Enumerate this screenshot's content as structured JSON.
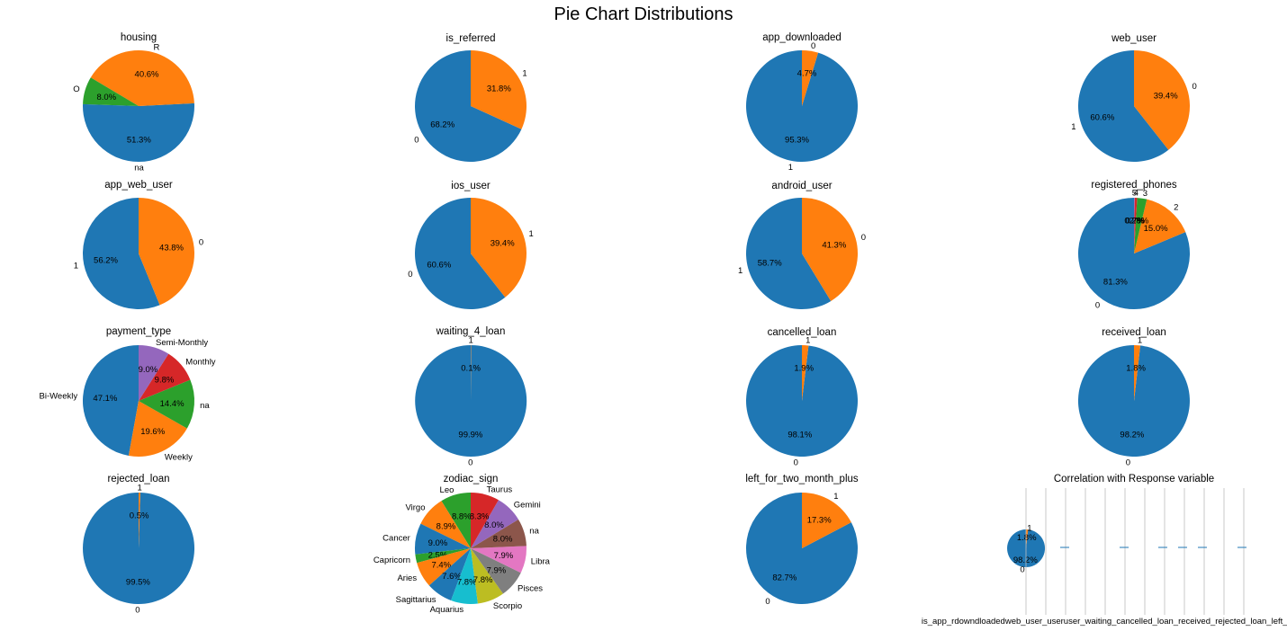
{
  "figure": {
    "suptitle": "Pie Chart Distributions"
  },
  "chart_data": [
    {
      "type": "pie",
      "title": "housing",
      "labels": [
        "na",
        "R",
        "O"
      ],
      "values": [
        51.3,
        40.6,
        8.0
      ],
      "pct_labels": [
        "51.3%",
        "40.6%",
        "8.0%"
      ],
      "colors": [
        "#1f77b4",
        "#ff7f0e",
        "#2ca02c"
      ]
    },
    {
      "type": "pie",
      "title": "is_referred",
      "labels": [
        "0",
        "1"
      ],
      "values": [
        68.2,
        31.8
      ],
      "pct_labels": [
        "68.2%",
        "31.8%"
      ],
      "colors": [
        "#1f77b4",
        "#ff7f0e"
      ]
    },
    {
      "type": "pie",
      "title": "app_downloaded",
      "labels": [
        "1",
        "0"
      ],
      "values": [
        95.3,
        4.7
      ],
      "pct_labels": [
        "95.3%",
        "4.7%"
      ],
      "colors": [
        "#1f77b4",
        "#ff7f0e"
      ]
    },
    {
      "type": "pie",
      "title": "web_user",
      "labels": [
        "1",
        "0"
      ],
      "values": [
        60.6,
        39.4
      ],
      "pct_labels": [
        "60.6%",
        "39.4%"
      ],
      "colors": [
        "#1f77b4",
        "#ff7f0e"
      ]
    },
    {
      "type": "pie",
      "title": "app_web_user",
      "labels": [
        "1",
        "0"
      ],
      "values": [
        56.2,
        43.8
      ],
      "pct_labels": [
        "56.2%",
        "43.8%"
      ],
      "colors": [
        "#1f77b4",
        "#ff7f0e"
      ]
    },
    {
      "type": "pie",
      "title": "ios_user",
      "labels": [
        "0",
        "1"
      ],
      "values": [
        60.6,
        39.4
      ],
      "pct_labels": [
        "60.6%",
        "39.4%"
      ],
      "colors": [
        "#1f77b4",
        "#ff7f0e"
      ]
    },
    {
      "type": "pie",
      "title": "android_user",
      "labels": [
        "1",
        "0"
      ],
      "values": [
        58.7,
        41.3
      ],
      "pct_labels": [
        "58.7%",
        "41.3%"
      ],
      "colors": [
        "#1f77b4",
        "#ff7f0e"
      ]
    },
    {
      "type": "pie",
      "title": "registered_phones",
      "labels": [
        "0",
        "2",
        "3",
        "4",
        "5"
      ],
      "values": [
        81.3,
        15.0,
        2.8,
        0.7,
        0.2
      ],
      "pct_labels": [
        "81.3%",
        "15.0%",
        "2.8%",
        "0.7%",
        "0.2%"
      ],
      "colors": [
        "#1f77b4",
        "#ff7f0e",
        "#2ca02c",
        "#d62728",
        "#9467bd"
      ]
    },
    {
      "type": "pie",
      "title": "payment_type",
      "labels": [
        "Bi-Weekly",
        "Weekly",
        "na",
        "Monthly",
        "Semi-Monthly"
      ],
      "values": [
        47.1,
        19.6,
        14.4,
        9.8,
        9.0
      ],
      "pct_labels": [
        "47.1%",
        "19.6%",
        "14.4%",
        "9.8%",
        "9.0%"
      ],
      "colors": [
        "#1f77b4",
        "#ff7f0e",
        "#2ca02c",
        "#d62728",
        "#9467bd"
      ]
    },
    {
      "type": "pie",
      "title": "waiting_4_loan",
      "labels": [
        "0",
        "1"
      ],
      "values": [
        99.9,
        0.1
      ],
      "pct_labels": [
        "99.9%",
        "0.1%"
      ],
      "colors": [
        "#1f77b4",
        "#ff7f0e"
      ]
    },
    {
      "type": "pie",
      "title": "cancelled_loan",
      "labels": [
        "0",
        "1"
      ],
      "values": [
        98.1,
        1.9
      ],
      "pct_labels": [
        "98.1%",
        "1.9%"
      ],
      "colors": [
        "#1f77b4",
        "#ff7f0e"
      ]
    },
    {
      "type": "pie",
      "title": "received_loan",
      "labels": [
        "0",
        "1"
      ],
      "values": [
        98.2,
        1.8
      ],
      "pct_labels": [
        "98.2%",
        "1.8%"
      ],
      "colors": [
        "#1f77b4",
        "#ff7f0e"
      ]
    },
    {
      "type": "pie",
      "title": "rejected_loan",
      "labels": [
        "0",
        "1"
      ],
      "values": [
        99.5,
        0.5
      ],
      "pct_labels": [
        "99.5%",
        "0.5%"
      ],
      "colors": [
        "#1f77b4",
        "#ff7f0e"
      ]
    },
    {
      "type": "pie",
      "title": "zodiac_sign",
      "labels": [
        "Leo",
        "Virgo",
        "Cancer",
        "Capricorn",
        "Aries",
        "Sagittarius",
        "Aquarius",
        "Scorpio",
        "Pisces",
        "Libra",
        "na",
        "Gemini",
        "Taurus"
      ],
      "values": [
        8.8,
        8.9,
        9.0,
        2.5,
        7.4,
        7.6,
        7.8,
        7.8,
        7.9,
        7.9,
        8.0,
        8.0,
        8.3
      ],
      "pct_labels": [
        "8.8%",
        "8.9%",
        "9.0%",
        "2.5%",
        "7.4%",
        "7.6%",
        "7.8%",
        "7.8%",
        "7.9%",
        "7.9%",
        "8.0%",
        "8.0%",
        "8.3%"
      ],
      "colors": [
        "#2ca02c",
        "#ff7f0e",
        "#1f77b4",
        "#2ca02c",
        "#ff7f0e",
        "#1f77b4",
        "#17becf",
        "#bcbd22",
        "#7f7f7f",
        "#e377c2",
        "#8c564b",
        "#9467bd",
        "#d62728"
      ]
    },
    {
      "type": "pie",
      "title": "left_for_two_month_plus",
      "labels": [
        "0",
        "1"
      ],
      "values": [
        82.7,
        17.3
      ],
      "pct_labels": [
        "82.7%",
        "17.3%"
      ],
      "colors": [
        "#1f77b4",
        "#ff7f0e"
      ]
    },
    {
      "type": "pie",
      "title": "Correlation with Response variable",
      "labels": [
        "0",
        "1"
      ],
      "values": [
        98.2,
        1.8
      ],
      "pct_labels": [
        "98.2%",
        "1.8%"
      ],
      "colors": [
        "#1f77b4",
        "#ff7f0e"
      ],
      "overlapped_tick_labels": "is_app_rdowndloadedweb_user_useruser_waiting_cancelled_loan_received_rejected_loan_left_for_two_month_plus"
    }
  ]
}
